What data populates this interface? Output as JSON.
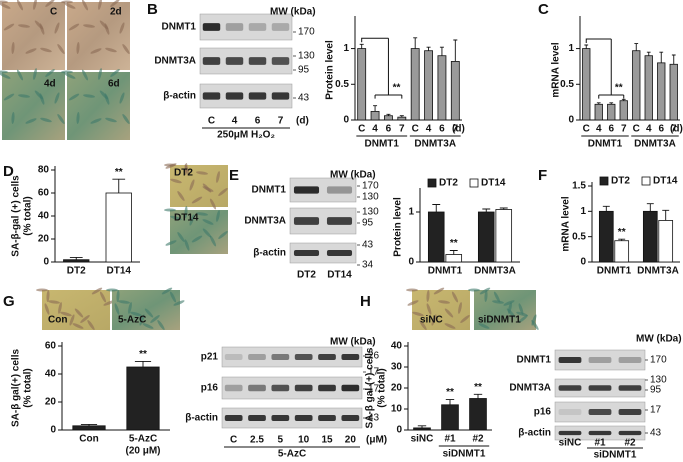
{
  "panels": [
    "A",
    "B",
    "C",
    "D",
    "E",
    "F",
    "G",
    "H"
  ],
  "photos": {
    "A": [
      "C",
      "2d",
      "4d",
      "6d"
    ],
    "D": [
      "DT2",
      "DT14"
    ],
    "G": [
      "Con",
      "5-AzC"
    ],
    "H": [
      "siNC",
      "siDNMT1"
    ]
  },
  "blots": [
    {
      "rows": [
        "DNMT1",
        "DNMT3A",
        "β-actin"
      ],
      "mw_title": "MW (kDa)",
      "mw": [
        "170",
        "130",
        "95",
        "43"
      ],
      "lanes": [
        "C",
        "4",
        "6",
        "7"
      ],
      "lane_unit": "(d)",
      "treatment": "250μM H₂O₂"
    },
    {
      "rows": [
        "DNMT1",
        "DNMT3A",
        "β-actin"
      ],
      "mw_title": "MW (kDa)",
      "mw": [
        "170",
        "130",
        "130",
        "95",
        "43",
        "34"
      ],
      "lanes": [
        "DT2",
        "DT14"
      ]
    },
    {
      "rows": [
        "p21",
        "p16",
        "β-actin"
      ],
      "mw_title": "MW (kDa)",
      "mw": [
        "26",
        "17",
        "17",
        "43"
      ],
      "lanes": [
        "C",
        "2.5",
        "5",
        "10",
        "15",
        "20"
      ],
      "lane_unit": "(μM)",
      "treatment": "5-AzC"
    },
    {
      "rows": [
        "DNMT1",
        "DNMT3A",
        "p16",
        "β-actin"
      ],
      "mw_title": "MW (kDa)",
      "mw": [
        "170",
        "130",
        "95",
        "17",
        "43"
      ],
      "lanes": [
        "siNC",
        "#1",
        "#2"
      ],
      "treatment": "siDNMT1"
    }
  ],
  "chart_data": [
    {
      "type": "bar",
      "ylabel": [
        "Protein level"
      ],
      "categories": [
        "C",
        "4",
        "6",
        "7",
        "C",
        "4",
        "6",
        "7"
      ],
      "groups": [
        "DNMT1",
        "DNMT3A"
      ],
      "x_unit": "(d)",
      "values": [
        1.0,
        0.12,
        0.06,
        0.04,
        1.0,
        0.97,
        0.9,
        0.82
      ],
      "errors": [
        0.06,
        0.08,
        0.02,
        0.02,
        0.15,
        0.05,
        0.12,
        0.3
      ],
      "color": "#9a9a9a",
      "ylim": [
        0,
        1.4
      ],
      "yticks": [
        0,
        0.5,
        1
      ],
      "annotations": [
        "**"
      ]
    },
    {
      "type": "bar",
      "ylabel": [
        "mRNA level"
      ],
      "categories": [
        "C",
        "4",
        "6",
        "7",
        "C",
        "4",
        "6",
        "7"
      ],
      "groups": [
        "DNMT1",
        "DNMT3A"
      ],
      "x_unit": "(d)",
      "values": [
        1.0,
        0.22,
        0.22,
        0.27,
        0.97,
        0.9,
        0.8,
        0.78
      ],
      "errors": [
        0.05,
        0.02,
        0.02,
        0.02,
        0.1,
        0.05,
        0.15,
        0.13
      ],
      "color": "#9a9a9a",
      "ylim": [
        0,
        1.4
      ],
      "yticks": [
        0,
        0.5,
        1
      ],
      "annotations": [
        "**"
      ]
    },
    {
      "type": "bar",
      "ylabel": [
        "SA-β-gal (+) cells",
        "(% total)"
      ],
      "categories": [
        "DT2",
        "DT14"
      ],
      "values": [
        2,
        60
      ],
      "errors": [
        2,
        12
      ],
      "color": [
        "#222222",
        "#ffffff"
      ],
      "ylim": [
        0,
        80
      ],
      "yticks": [
        0,
        20,
        40,
        60,
        80
      ],
      "annotations": [
        "**"
      ]
    },
    {
      "type": "grouped_bar",
      "ylabel": [
        "Protein level"
      ],
      "categories": [
        "DNMT1",
        "DNMT3A"
      ],
      "series": [
        {
          "name": "DT2",
          "color": "#222222",
          "values": [
            1.0,
            1.0
          ],
          "errors": [
            0.15,
            0.06
          ]
        },
        {
          "name": "DT14",
          "color": "#ffffff",
          "values": [
            0.15,
            1.05
          ],
          "errors": [
            0.08,
            0.03
          ]
        }
      ],
      "ylim": [
        0,
        1.4
      ],
      "yticks": [
        0,
        1
      ],
      "annotations": [
        "**"
      ],
      "legend": "top"
    },
    {
      "type": "grouped_bar",
      "ylabel": [
        "mRNA level"
      ],
      "categories": [
        "DNMT1",
        "DNMT3A"
      ],
      "series": [
        {
          "name": "DT2",
          "color": "#222222",
          "values": [
            1.0,
            1.0
          ],
          "errors": [
            0.1,
            0.15
          ]
        },
        {
          "name": "DT14",
          "color": "#ffffff",
          "values": [
            0.42,
            0.82
          ],
          "errors": [
            0.03,
            0.2
          ]
        }
      ],
      "ylim": [
        0,
        1.5
      ],
      "yticks": [
        0,
        0.5,
        1,
        1.5
      ],
      "annotations": [
        "**"
      ],
      "legend": "top"
    },
    {
      "type": "bar",
      "ylabel": [
        "SA-β gal(+) cells",
        "(% total)"
      ],
      "categories": [
        "Con",
        "5-AzC"
      ],
      "x_note": "(20 μM)",
      "values": [
        3,
        45
      ],
      "errors": [
        1,
        4
      ],
      "color": "#222222",
      "ylim": [
        0,
        60
      ],
      "yticks": [
        0,
        20,
        40,
        60
      ],
      "annotations": [
        "**"
      ]
    },
    {
      "type": "bar",
      "ylabel": [
        "SA-β gal (+) cells",
        "(% total)"
      ],
      "categories": [
        "siNC",
        "#1",
        "#2"
      ],
      "groups": [
        "siDNMT1"
      ],
      "values": [
        1,
        12,
        15
      ],
      "errors": [
        1,
        2.5,
        2
      ],
      "color": "#222222",
      "ylim": [
        0,
        40
      ],
      "yticks": [
        0,
        10,
        20,
        30,
        40
      ],
      "annotations": [
        "**",
        "**"
      ]
    }
  ]
}
